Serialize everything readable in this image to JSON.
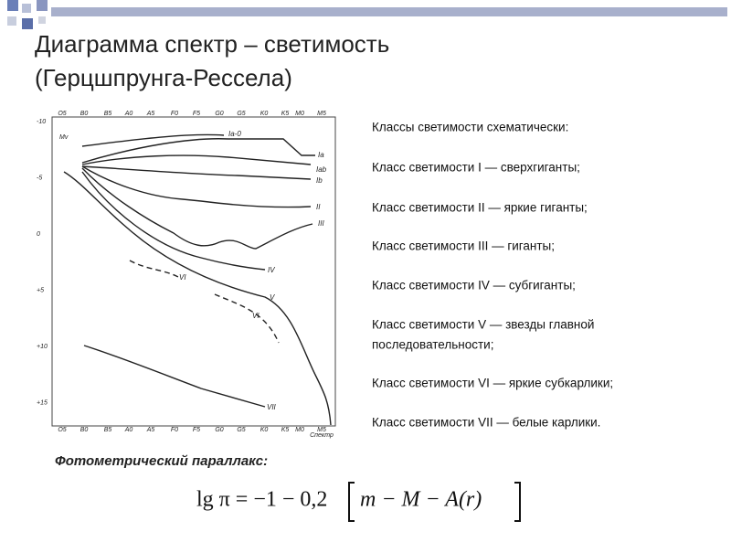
{
  "title": {
    "line1": "Диаграмма спектр – светимость",
    "line2": "(Герцшпрунга-Рессела)"
  },
  "figure": {
    "y_axis_label": "Mv",
    "x_axis_label": "Спектр",
    "spectral_classes": [
      "O5",
      "B0",
      "B5",
      "A0",
      "A5",
      "F0",
      "F5",
      "G0",
      "G5",
      "K0",
      "K5",
      "M0",
      "M5"
    ],
    "magnitude_labels": [
      "-10",
      "-5",
      "0",
      "+5",
      "+10",
      "+15"
    ],
    "curve_labels": [
      "Ia-0",
      "Ia",
      "Iab",
      "Ib",
      "II",
      "III",
      "IV",
      "V",
      "VI",
      "VI",
      "VII"
    ]
  },
  "list": [
    "Классы светимости схематически:",
    "Класс светимости I — сверхгиганты;",
    "Класс светимости II — яркие гиганты;",
    "Класс светимости III — гиганты;",
    "Класс светимости IV — субгиганты;",
    "Класс светимости V — звезды главной",
    "последовательности;",
    "Класс светимости VI — яркие субкарлики;",
    "Класс светимости VII — белые карлики."
  ],
  "formula": {
    "caption": "Фотометрический параллакс:",
    "lhs": "lg π = −1 − 0,2",
    "bracket": "m − M − A(r)"
  }
}
